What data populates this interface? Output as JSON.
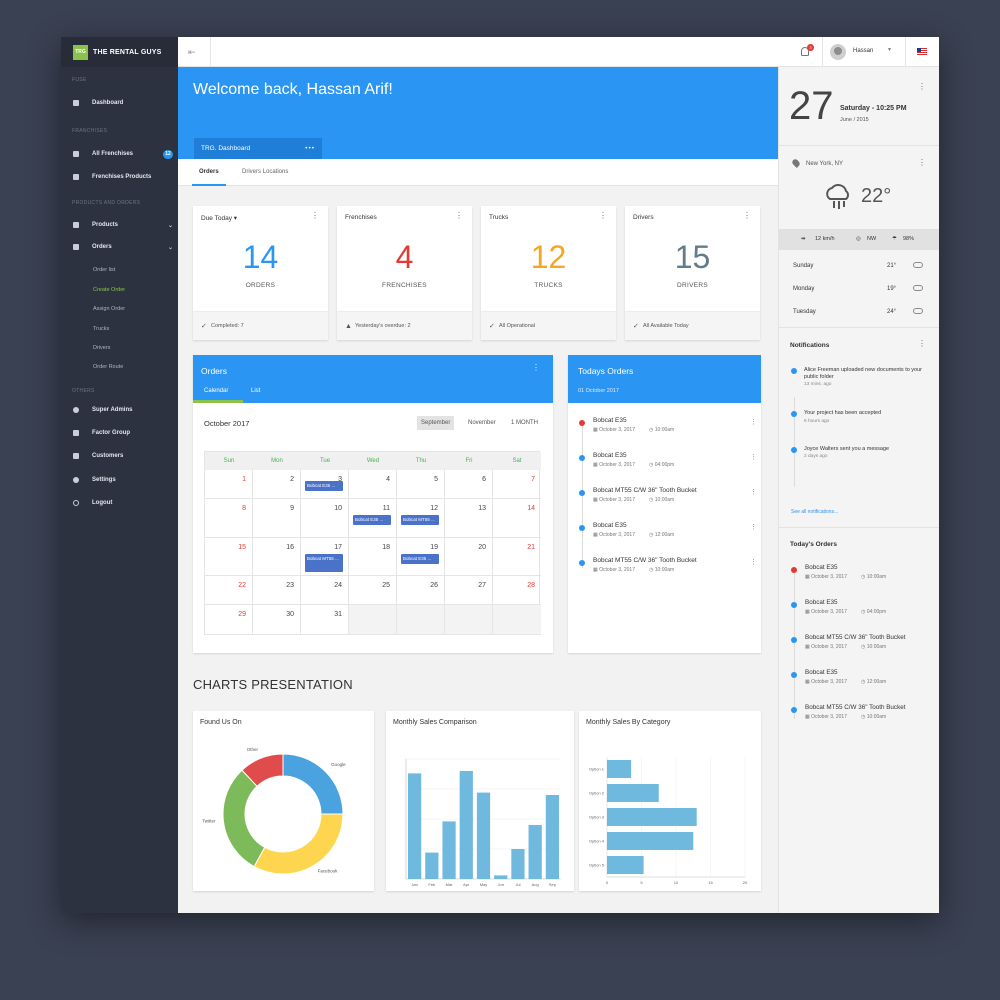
{
  "brand": {
    "logo": "TRG",
    "name": "THE RENTAL GUYS"
  },
  "sidebar": {
    "sec_fuse": "FUSE",
    "sec_franchises": "FRANCHISES",
    "sec_products": "PRODUCTS AND ORDERS",
    "sec_others": "OTHERS",
    "dashboard": "Dashboard",
    "all_franchises": "All Frenchises",
    "all_franchises_badge": "12",
    "franchises_products": "Frenchises Products",
    "products": "Products",
    "orders": "Orders",
    "order_sub": [
      "Order list",
      "Create Order",
      "Assign Order",
      "Trucks",
      "Drivers",
      "Order Route"
    ],
    "super_admins": "Super Admins",
    "factor_group": "Factor Group",
    "customers": "Customers",
    "settings": "Settings",
    "logout": "Logout"
  },
  "topbar": {
    "notif_count": "3",
    "username": "Hassan"
  },
  "hero": {
    "title": "Welcome back, Hassan Arif!",
    "chip": "TRG. Dashboard",
    "chip_dots": "•••"
  },
  "tabs": {
    "orders": "Orders",
    "drivers": "Drivers Locations"
  },
  "stats": [
    {
      "title": "Due Today",
      "caret": "▾",
      "value": "14",
      "label": "ORDERS",
      "foot": "Completed: 7",
      "color": "#2b95f3"
    },
    {
      "title": "Frenchises",
      "value": "4",
      "label": "FRENCHISES",
      "foot": "Yesterday's overdue: 2",
      "color": "#e53935"
    },
    {
      "title": "Trucks",
      "value": "12",
      "label": "TRUCKS",
      "foot": "All Operational",
      "color": "#f5a623"
    },
    {
      "title": "Drivers",
      "value": "15",
      "label": "DRIVERS",
      "foot": "All Available Today",
      "color": "#607d8b"
    }
  ],
  "orders_panel": {
    "title": "Orders",
    "tab_calendar": "Calendar",
    "tab_list": "List",
    "month": "October 2017",
    "btn_sep": "September",
    "btn_nov": "November",
    "btn_month": "1 MONTH",
    "dow": [
      "Sun",
      "Mon",
      "Tue",
      "Wed",
      "Thu",
      "Fri",
      "Sat"
    ],
    "weeks": [
      [
        "1",
        "2",
        "3",
        "4",
        "5",
        "6",
        "7"
      ],
      [
        "8",
        "9",
        "10",
        "11",
        "12",
        "13",
        "14"
      ],
      [
        "15",
        "16",
        "17",
        "18",
        "19",
        "20",
        "21"
      ],
      [
        "22",
        "23",
        "24",
        "25",
        "26",
        "27",
        "28"
      ],
      [
        "29",
        "30",
        "31",
        "",
        "",
        "",
        ""
      ]
    ],
    "events": {
      "e1": "Bobcat E35 ...",
      "e2": "Bobcat E35 ...",
      "e3": "Bobcat MT55 ...",
      "e4": "Bobcat MT55 ...",
      "e5": "Bobcat E35 ..."
    }
  },
  "todays_orders": {
    "title": "Todays Orders",
    "date": "01 October 2017",
    "items": [
      {
        "name": "Bobcat E35",
        "date": "October 3, 2017",
        "time": "10:00am"
      },
      {
        "name": "Bobcat E35",
        "date": "October 3, 2017",
        "time": "04:00pm"
      },
      {
        "name": "Bobcat MT55 C/W 36\" Tooth Bucket",
        "date": "October 3, 2017",
        "time": "10:00am"
      },
      {
        "name": "Bobcat E35",
        "date": "October 3, 2017",
        "time": "12:00am"
      },
      {
        "name": "Bobcat MT55 C/W 36\" Tooth Bucket",
        "date": "October 3, 2017",
        "time": "10:00am"
      }
    ]
  },
  "charts_title": "CHARTS PRESENTATION",
  "chart_data": [
    {
      "type": "pie",
      "title": "Found Us On",
      "categories": [
        "Other",
        "Google",
        "Facebook",
        "Twitter"
      ],
      "values": [
        12,
        25,
        33,
        30
      ],
      "colors": [
        "#e04b4b",
        "#4aa3df",
        "#fdd54f",
        "#7dbb5a"
      ]
    },
    {
      "type": "bar",
      "title": "Monthly Sales Comparison",
      "categories": [
        "Jan",
        "Feb",
        "Mar",
        "Apr",
        "May",
        "Jun",
        "Jul",
        "Aug",
        "Sep"
      ],
      "values": [
        88,
        22,
        48,
        90,
        72,
        3,
        25,
        45,
        70
      ],
      "ylim": [
        0,
        100
      ]
    },
    {
      "type": "bar",
      "title": "Monthly Sales By Category",
      "orientation": "horizontal",
      "categories": [
        "Option 1",
        "Option 2",
        "Option 3",
        "Option 4",
        "Option 5"
      ],
      "values": [
        3.5,
        7.5,
        13,
        12.5,
        5.3
      ],
      "xlim": [
        0,
        20
      ],
      "xticks": [
        "0",
        "5",
        "10",
        "15",
        "20"
      ]
    }
  ],
  "rpanel": {
    "day": "27",
    "weekday": "Saturday - 10:25 PM",
    "month": "June / 2015",
    "location": "New York, NY",
    "temp": "22°",
    "wind": "12 km/h",
    "dir": "NW",
    "humidity": "98%",
    "forecast": [
      {
        "day": "Sunday",
        "temp": "21°"
      },
      {
        "day": "Monday",
        "temp": "19°"
      },
      {
        "day": "Tuesday",
        "temp": "24°"
      }
    ],
    "notif_title": "Notifications",
    "notifs": [
      {
        "text": "Alice Freeman uploaded new documents to your public folder",
        "ago": "13 mins. ago"
      },
      {
        "text": "Your project has been accepted",
        "ago": "6 hours ago"
      },
      {
        "text": "Joyce Walters sent you a message",
        "ago": "2 days ago"
      }
    ],
    "notif_link": "See all notifications...",
    "orders_title": "Today's Orders"
  },
  "colors": {
    "accent": "#2b95f3",
    "sidebar": "#2d3241",
    "green": "#8bc34a"
  }
}
